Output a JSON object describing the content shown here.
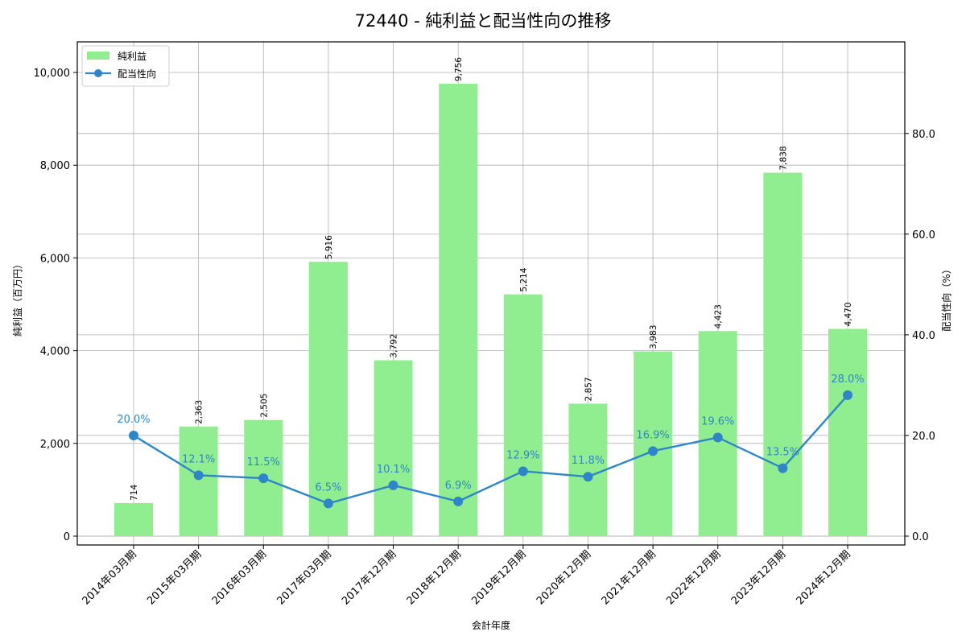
{
  "chart_data": {
    "type": "bar+line",
    "title": "72440 - 純利益と配当性向の推移",
    "xlabel": "会計年度",
    "ylabel_left": "純利益（百万円）",
    "ylabel_right": "配当性向（%）",
    "categories": [
      "2014年03月期",
      "2015年03月期",
      "2016年03月期",
      "2017年03月期",
      "2017年12月期",
      "2018年12月期",
      "2019年12月期",
      "2020年12月期",
      "2021年12月期",
      "2022年12月期",
      "2023年12月期",
      "2024年12月期"
    ],
    "series": [
      {
        "name": "純利益",
        "type": "bar",
        "axis": "left",
        "color": "#90ee90",
        "values": [
          714,
          2363,
          2505,
          5916,
          3792,
          9756,
          5214,
          2857,
          3983,
          4423,
          7838,
          4470
        ],
        "labels": [
          "714",
          "2,363",
          "2,505",
          "5,916",
          "3,792",
          "9,756",
          "5,214",
          "2,857",
          "3,983",
          "4,423",
          "7,838",
          "4,470"
        ]
      },
      {
        "name": "配当性向",
        "type": "line",
        "axis": "right",
        "color": "#2e86c9",
        "values": [
          20.0,
          12.1,
          11.5,
          6.5,
          10.1,
          6.9,
          12.9,
          11.8,
          16.9,
          19.6,
          13.5,
          28.0
        ],
        "labels": [
          "20.0%",
          "12.1%",
          "11.5%",
          "6.5%",
          "10.1%",
          "6.9%",
          "12.9%",
          "11.8%",
          "16.9%",
          "19.6%",
          "13.5%",
          "28.0%"
        ]
      }
    ],
    "ylim_left": [
      -191,
      10660
    ],
    "ylim_right": [
      -1.76,
      98.2
    ],
    "yticks_left": [
      0,
      2000,
      4000,
      6000,
      8000,
      10000
    ],
    "yticks_left_labels": [
      "0",
      "2,000",
      "4,000",
      "6,000",
      "8,000",
      "10,000"
    ],
    "yticks_right": [
      0,
      20,
      40,
      60,
      80
    ],
    "yticks_right_labels": [
      "0.0",
      "20.0",
      "40.0",
      "60.0",
      "80.0"
    ],
    "grid": true,
    "legend_position": "upper left",
    "legend": [
      "純利益",
      "配当性向"
    ]
  }
}
